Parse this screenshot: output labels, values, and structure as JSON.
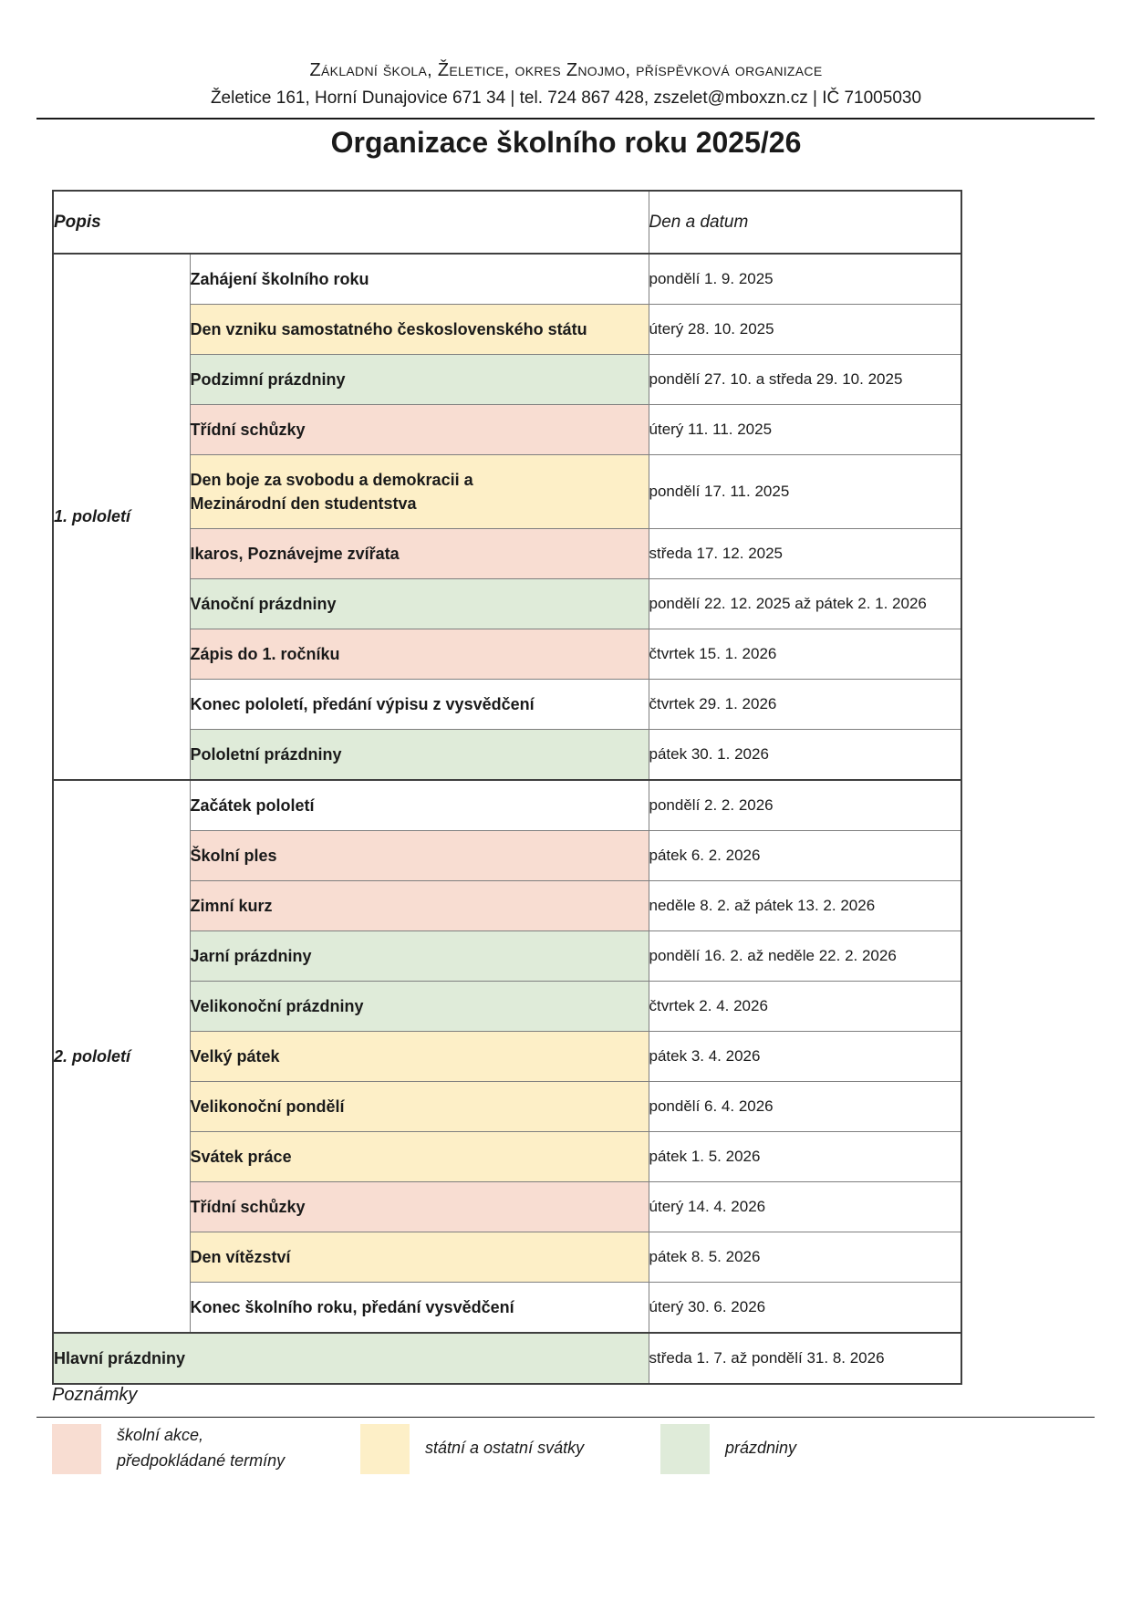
{
  "page": {
    "org_name": "Základní škola, Želetice, okres Znojmo, příspěvková organizace",
    "address": "Želetice 161, Horní Dunajovice 671 34 | tel. 724 867 428, zszelet@mboxzn.cz | IČ 71005030",
    "title": "Organizace školního roku 2025/26"
  },
  "table": {
    "columns": {
      "popis": "Popis",
      "den": "Den a datum"
    },
    "groups": [
      {
        "label": "1. pololetí",
        "rows": [
          {
            "desc": "Zahájení školního roku",
            "date": "pondělí 1. 9. 2025",
            "type": "none"
          },
          {
            "desc": "Den vzniku samostatného československého státu",
            "date": "úterý 28. 10. 2025",
            "type": "state_holiday"
          },
          {
            "desc": "Podzimní prázdniny",
            "date": "pondělí 27. 10. a středa 29. 10. 2025",
            "type": "holiday"
          },
          {
            "desc": "Třídní schůzky",
            "date": "úterý 11. 11. 2025",
            "type": "event"
          },
          {
            "desc": "Den boje za svobodu a demokracii a\nMezinárodní den studentstva",
            "date": "pondělí 17. 11. 2025",
            "type": "state_holiday",
            "tall": true
          },
          {
            "desc": "Ikaros, Poznávejme zvířata",
            "date": "středa 17. 12. 2025",
            "type": "event"
          },
          {
            "desc": "Vánoční prázdniny",
            "date": "pondělí 22. 12. 2025 až pátek 2. 1. 2026",
            "type": "holiday"
          },
          {
            "desc": "Zápis do 1. ročníku",
            "date": "čtvrtek 15. 1. 2026",
            "type": "event"
          },
          {
            "desc": "Konec pololetí, předání výpisu z vysvědčení",
            "date": "čtvrtek 29. 1. 2026",
            "type": "none"
          },
          {
            "desc": "Pololetní prázdniny",
            "date": "pátek 30. 1. 2026",
            "type": "holiday"
          }
        ]
      },
      {
        "label": "2. pololetí",
        "rows": [
          {
            "desc": "Začátek pololetí",
            "date": "pondělí 2. 2. 2026",
            "type": "none"
          },
          {
            "desc": "Školní ples",
            "date": "pátek 6. 2. 2026",
            "type": "event"
          },
          {
            "desc": "Zimní kurz",
            "date": "neděle 8. 2. až pátek 13. 2. 2026",
            "type": "event"
          },
          {
            "desc": "Jarní prázdniny",
            "date": "pondělí 16. 2. až neděle 22. 2. 2026",
            "type": "holiday"
          },
          {
            "desc": "Velikonoční prázdniny",
            "date": "čtvrtek 2. 4. 2026",
            "type": "holiday"
          },
          {
            "desc": "Velký pátek",
            "date": "pátek 3. 4. 2026",
            "type": "state_holiday"
          },
          {
            "desc": "Velikonoční pondělí",
            "date": "pondělí 6. 4. 2026",
            "type": "state_holiday"
          },
          {
            "desc": "Svátek práce",
            "date": "pátek 1. 5. 2026",
            "type": "state_holiday"
          },
          {
            "desc": "Třídní schůzky",
            "date": "úterý 14. 4. 2026",
            "type": "event"
          },
          {
            "desc": "Den vítězství",
            "date": "pátek 8. 5. 2026",
            "type": "state_holiday"
          },
          {
            "desc": "Konec školního roku, předání vysvědčení",
            "date": "úterý 30. 6. 2026",
            "type": "none"
          }
        ]
      }
    ],
    "summary_row": {
      "desc": "Hlavní prázdniny",
      "date": "středa 1. 7. až pondělí 31. 8. 2026",
      "type": "holiday"
    }
  },
  "notes": {
    "title": "Poznámky",
    "legend": [
      {
        "type": "event",
        "label": "školní akce,\npředpokládané termíny"
      },
      {
        "type": "state_holiday",
        "label": "státní a ostatní svátky"
      },
      {
        "type": "holiday",
        "label": "prázdniny"
      }
    ],
    "legend_offsets": [
      57,
      395,
      724
    ]
  },
  "colors": {
    "event": "#f8ddd2",
    "state_holiday": "#fdefc7",
    "holiday": "#dfebd9",
    "none": "#ffffff"
  }
}
